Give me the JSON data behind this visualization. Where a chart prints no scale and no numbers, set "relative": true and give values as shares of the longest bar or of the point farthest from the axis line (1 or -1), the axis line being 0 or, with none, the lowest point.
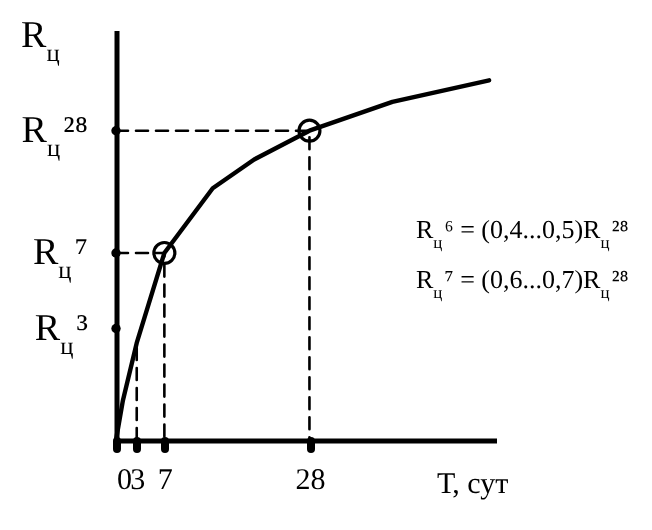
{
  "chart_data": {
    "type": "line",
    "xlabel": "Т, сут",
    "ylabel": "R$_{ц}$",
    "relative": true,
    "xlim": [
      0,
      55
    ],
    "xticks": [
      0,
      3,
      7,
      28
    ],
    "grid": false,
    "annotations": [
      "R$_{ц}$³",
      "R$_{ц}$⁷",
      "R$_{ц}$²⁸",
      "R$_{ц}$⁶ = (0,4...0,5)R$_{ц}$²⁸",
      "R$_{ц}$⁷ = (0,6...0,7)R$_{ц}$²⁸"
    ],
    "series": [
      {
        "color": "#000000",
        "line_style": "solid",
        "x": [
          0,
          1,
          3,
          7,
          14,
          20,
          28,
          40,
          54
        ],
        "values": [
          0,
          0.11,
          0.27,
          0.52,
          0.7,
          0.78,
          0.86,
          0.94,
          1
        ]
      },
      {
        "color": "#000000",
        "line_style": "dashed",
        "x": [
          0,
          28,
          28
        ],
        "values": [
          0.86,
          0.86,
          0
        ]
      },
      {
        "color": "#000000",
        "line_style": "dashed",
        "x": [
          0,
          7,
          7
        ],
        "values": [
          0.52,
          0.52,
          0
        ]
      },
      {
        "color": "#000000",
        "line_style": "dashed",
        "x": [
          3,
          3
        ],
        "values": [
          0,
          0.27
        ]
      },
      {
        "type": "scatter",
        "color": "#000000",
        "marker": "circle",
        "x": [
          7,
          28
        ],
        "values": [
          0.52,
          0.86
        ]
      },
      {
        "type": "scatter",
        "color": "#000000",
        "marker": "circle",
        "x": [
          0,
          0,
          0
        ],
        "values": [
          0.31,
          0.52,
          0.86
        ]
      }
    ]
  }
}
